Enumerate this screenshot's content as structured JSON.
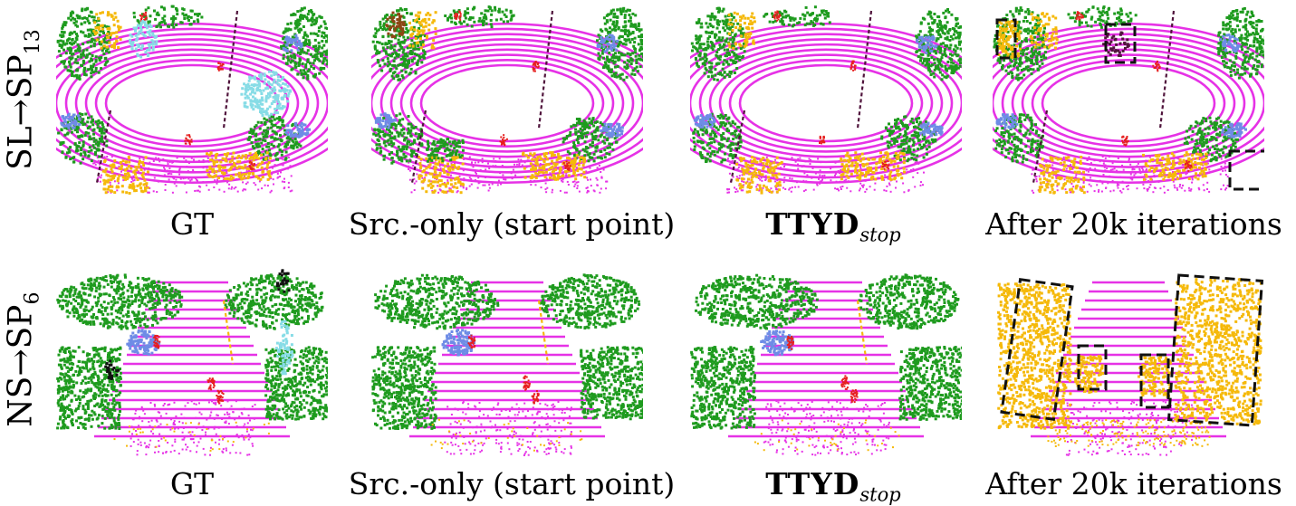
{
  "rows": [
    {
      "label_main": "SL→SP",
      "label_sub": "13",
      "scene": "roundabout",
      "captions": [
        {
          "text": "GT"
        },
        {
          "text": "Src.-only (start point)"
        },
        {
          "text": "TTYD",
          "sub": "stop",
          "bold": true
        },
        {
          "text": "After 20k iterations"
        }
      ]
    },
    {
      "label_main": "NS→SP",
      "label_sub": "6",
      "scene": "street",
      "captions": [
        {
          "text": "GT"
        },
        {
          "text": "Src.-only (start point)"
        },
        {
          "text": "TTYD",
          "sub": "stop",
          "bold": true
        },
        {
          "text": "After 20k iterations"
        }
      ]
    }
  ],
  "colors": {
    "road": "#e632e6",
    "vegetation": "#1e9b1e",
    "building": "#f5b90a",
    "car": "#6e8ce6",
    "person": "#e61e1e",
    "pole": "#50143c",
    "sidewalk": "#c850c8",
    "unknown": "#87dce6",
    "trunk": "#8c4614",
    "noise": "#111111"
  }
}
